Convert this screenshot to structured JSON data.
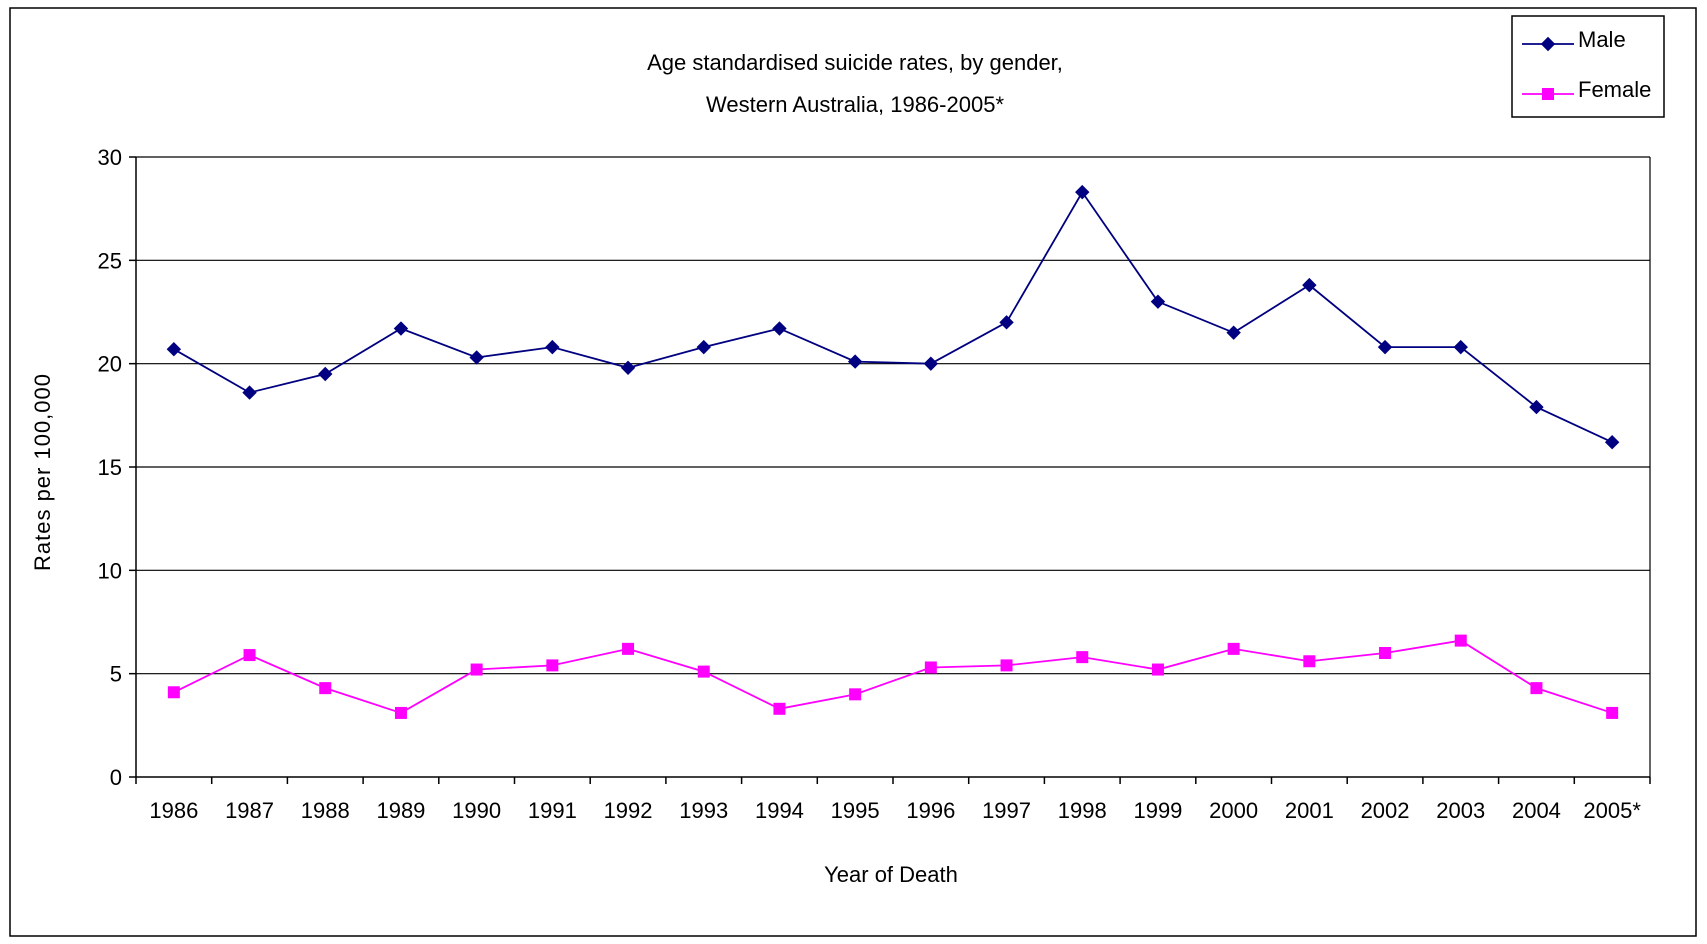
{
  "chart_data": {
    "type": "line",
    "title": "Age standardised suicide rates, by gender,",
    "subtitle": "Western Australia, 1986-2005*",
    "xlabel": "Year of Death",
    "ylabel": "Rates per 100,000",
    "ylim": [
      0,
      30
    ],
    "yticks": [
      "0",
      "5",
      "10",
      "15",
      "20",
      "25",
      "30"
    ],
    "categories": [
      "1986",
      "1987",
      "1988",
      "1989",
      "1990",
      "1991",
      "1992",
      "1993",
      "1994",
      "1995",
      "1996",
      "1997",
      "1998",
      "1999",
      "2000",
      "2001",
      "2002",
      "2003",
      "2004",
      "2005*"
    ],
    "grid": true,
    "legend": "top-right",
    "series": [
      {
        "name": "Male",
        "color": "#000080",
        "marker": "diamond",
        "values": [
          20.7,
          18.6,
          19.5,
          21.7,
          20.3,
          20.8,
          19.8,
          20.8,
          21.7,
          20.1,
          20.0,
          22.0,
          28.3,
          23.0,
          21.5,
          23.8,
          20.8,
          20.8,
          17.9,
          16.2
        ]
      },
      {
        "name": "Female",
        "color": "#ff00ff",
        "marker": "square",
        "values": [
          4.1,
          5.9,
          4.3,
          3.1,
          5.2,
          5.4,
          6.2,
          5.1,
          3.3,
          4.0,
          5.3,
          5.4,
          5.8,
          5.2,
          6.2,
          5.6,
          6.0,
          6.6,
          4.3,
          3.1
        ]
      }
    ]
  }
}
